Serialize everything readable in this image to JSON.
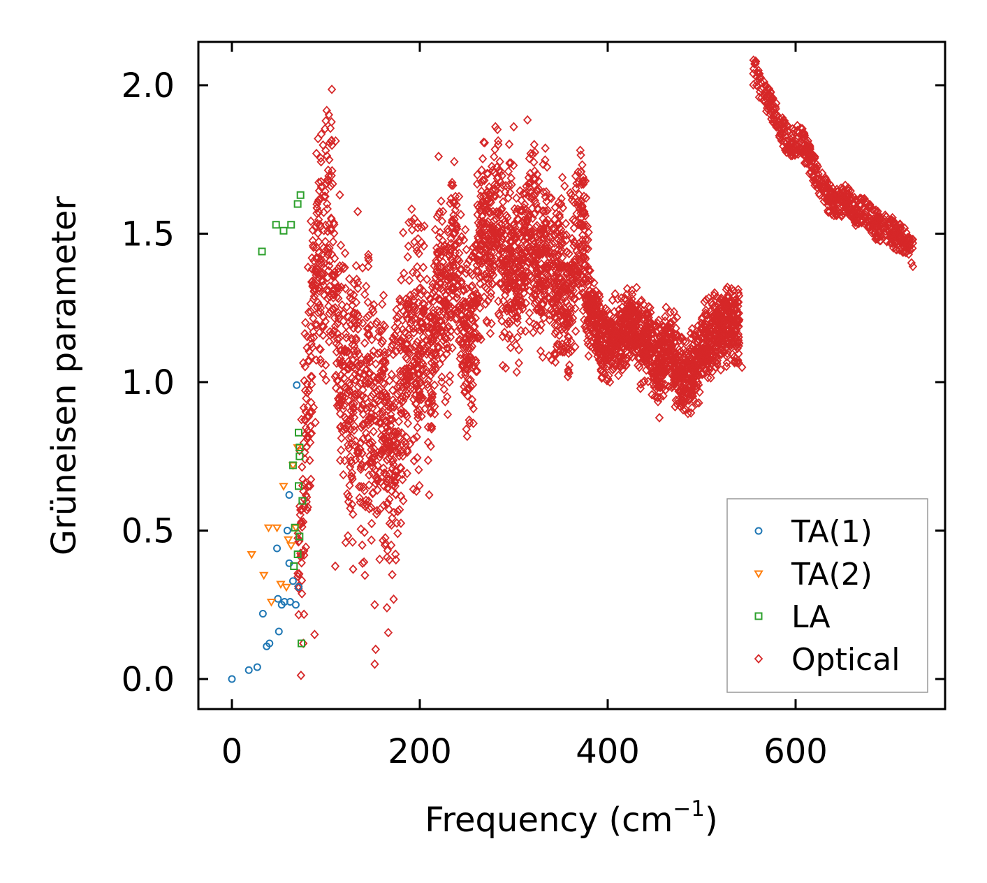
{
  "chart_data": {
    "type": "scatter",
    "title": "",
    "xlabel": "Frequency (cm",
    "xlabel_sup": "−1",
    "xlabel_end": ")",
    "ylabel": "Grüneisen parameter",
    "xlim": [
      -36,
      755
    ],
    "ylim": [
      -0.1,
      2.15
    ],
    "xticks": [
      0,
      200,
      400,
      600
    ],
    "xtick_labels": [
      "0",
      "200",
      "400",
      "600"
    ],
    "yticks": [
      0.0,
      0.5,
      1.0,
      1.5,
      2.0
    ],
    "ytick_labels": [
      "0.0",
      "0.5",
      "1.0",
      "1.5",
      "2.0"
    ],
    "grid": false,
    "legend_position": "lower-right",
    "series": [
      {
        "name": "TA(1)",
        "marker": "circle",
        "color": "#1f77b4",
        "points": [
          [
            0,
            0.0
          ],
          [
            18,
            0.03
          ],
          [
            27,
            0.04
          ],
          [
            33,
            0.22
          ],
          [
            37,
            0.11
          ],
          [
            40,
            0.12
          ],
          [
            48,
            0.44
          ],
          [
            49,
            0.27
          ],
          [
            50,
            0.16
          ],
          [
            53,
            0.25
          ],
          [
            56,
            0.26
          ],
          [
            59,
            0.5
          ],
          [
            61,
            0.39
          ],
          [
            61,
            0.62
          ],
          [
            62,
            0.26
          ],
          [
            65,
            0.33
          ],
          [
            68,
            0.25
          ],
          [
            69,
            0.99
          ],
          [
            71,
            0.31
          ]
        ]
      },
      {
        "name": "TA(2)",
        "marker": "triangle-down",
        "color": "#ff7f0e",
        "points": [
          [
            21,
            0.42
          ],
          [
            34,
            0.35
          ],
          [
            39,
            0.51
          ],
          [
            42,
            0.26
          ],
          [
            48,
            0.51
          ],
          [
            52,
            0.32
          ],
          [
            55,
            0.65
          ],
          [
            58,
            0.31
          ],
          [
            60,
            0.47
          ],
          [
            63,
            0.45
          ],
          [
            65,
            0.72
          ],
          [
            68,
            0.51
          ],
          [
            70,
            0.78
          ]
        ]
      },
      {
        "name": "LA",
        "marker": "square",
        "color": "#2ca02c",
        "points": [
          [
            32,
            1.44
          ],
          [
            47,
            1.53
          ],
          [
            55,
            1.51
          ],
          [
            63,
            1.53
          ],
          [
            65,
            0.72
          ],
          [
            66,
            0.38
          ],
          [
            67,
            0.51
          ],
          [
            70,
            0.42
          ],
          [
            70,
            1.6
          ],
          [
            71,
            0.65
          ],
          [
            71,
            0.83
          ],
          [
            72,
            0.75
          ],
          [
            72,
            0.78
          ],
          [
            72,
            0.48
          ],
          [
            73,
            1.63
          ],
          [
            75,
            0.6
          ],
          [
            74,
            0.12
          ]
        ]
      },
      {
        "name": "Optical",
        "marker": "diamond",
        "color": "#d62728",
        "generator": {
          "seed": 20240607,
          "count": 4600,
          "segments": [
            [
              70,
              0.35
            ],
            [
              80,
              0.85
            ],
            [
              88,
              1.25
            ],
            [
              95,
              1.55
            ],
            [
              100,
              1.42
            ],
            [
              106,
              1.55
            ],
            [
              112,
              1.2
            ],
            [
              118,
              1.05
            ],
            [
              125,
              0.9
            ],
            [
              132,
              1.1
            ],
            [
              140,
              0.85
            ],
            [
              146,
              1.0
            ],
            [
              152,
              0.8
            ],
            [
              160,
              0.95
            ],
            [
              168,
              0.7
            ],
            [
              175,
              0.85
            ],
            [
              182,
              1.0
            ],
            [
              190,
              1.15
            ],
            [
              198,
              1.05
            ],
            [
              205,
              1.2
            ],
            [
              212,
              1.0
            ],
            [
              220,
              1.35
            ],
            [
              228,
              1.2
            ],
            [
              236,
              1.45
            ],
            [
              245,
              1.25
            ],
            [
              252,
              1.1
            ],
            [
              260,
              1.3
            ],
            [
              268,
              1.55
            ],
            [
              275,
              1.42
            ],
            [
              282,
              1.58
            ],
            [
              290,
              1.35
            ],
            [
              298,
              1.45
            ],
            [
              305,
              1.3
            ],
            [
              312,
              1.5
            ],
            [
              320,
              1.55
            ],
            [
              328,
              1.35
            ],
            [
              335,
              1.45
            ],
            [
              342,
              1.3
            ],
            [
              350,
              1.38
            ],
            [
              358,
              1.25
            ],
            [
              366,
              1.45
            ],
            [
              372,
              1.55
            ],
            [
              378,
              1.3
            ],
            [
              386,
              1.2
            ],
            [
              395,
              1.12
            ],
            [
              405,
              1.15
            ],
            [
              415,
              1.15
            ],
            [
              425,
              1.2
            ],
            [
              435,
              1.15
            ],
            [
              445,
              1.12
            ],
            [
              455,
              1.05
            ],
            [
              465,
              1.12
            ],
            [
              475,
              1.05
            ],
            [
              485,
              1.0
            ],
            [
              492,
              1.05
            ],
            [
              500,
              1.1
            ],
            [
              510,
              1.15
            ],
            [
              520,
              1.18
            ],
            [
              530,
              1.2
            ],
            [
              540,
              1.18
            ]
          ],
          "tail": [
            [
              555,
              2.05
            ],
            [
              565,
              1.98
            ],
            [
              575,
              1.92
            ],
            [
              585,
              1.85
            ],
            [
              595,
              1.8
            ],
            [
              605,
              1.82
            ],
            [
              615,
              1.75
            ],
            [
              625,
              1.68
            ],
            [
              635,
              1.62
            ],
            [
              645,
              1.6
            ],
            [
              655,
              1.62
            ],
            [
              665,
              1.57
            ],
            [
              675,
              1.58
            ],
            [
              685,
              1.53
            ],
            [
              695,
              1.52
            ],
            [
              705,
              1.5
            ],
            [
              715,
              1.48
            ],
            [
              725,
              1.43
            ]
          ],
          "outliers": [
            [
              100,
              1.88
            ],
            [
              90,
              1.77
            ],
            [
              300,
              1.86
            ],
            [
              220,
              1.76
            ],
            [
              318,
              1.77
            ],
            [
              152,
              0.05
            ],
            [
              153,
              0.1
            ],
            [
              88,
              0.15
            ],
            [
              76,
              0.12
            ],
            [
              543,
              1.05
            ],
            [
              497,
              0.93
            ],
            [
              455,
              0.88
            ],
            [
              210,
              0.62
            ],
            [
              110,
              0.38
            ],
            [
              129,
              0.37
            ],
            [
              165,
              0.24
            ],
            [
              152,
              0.25
            ]
          ]
        }
      }
    ]
  }
}
